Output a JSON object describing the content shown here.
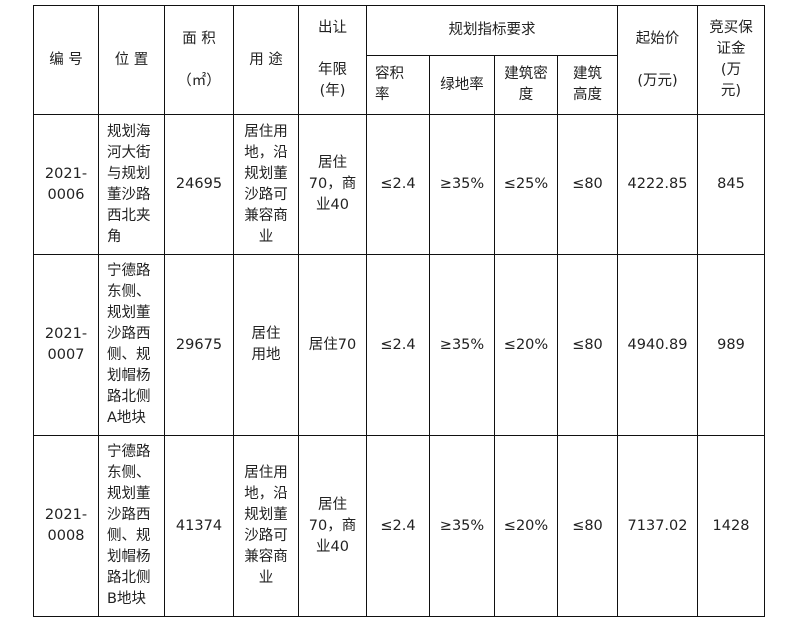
{
  "header": {
    "id": "编 号",
    "location": "位 置",
    "area": "面 积\n\n（㎡）",
    "use": "用 途",
    "term": "出让\n\n年限\n(年)",
    "planning": "规划指标要求",
    "far": "容积\n率",
    "green": "绿地率",
    "density": "建筑密\n度",
    "height": "建筑\n高度",
    "price": "起始价\n\n(万元)",
    "deposit": "竞买保\n证金\n(万\n元)"
  },
  "rows": [
    {
      "id": "2021-\n0006",
      "location": "规划海\n河大街\n与规划\n董沙路\n西北夹\n角",
      "area": "24695",
      "use": "居住用\n地，沿\n规划董\n沙路可\n兼容商\n业",
      "term": "居住\n70，商\n业40",
      "far": "≤2.4",
      "green": "≥35%",
      "density": "≤25%",
      "height": "≤80",
      "price": "4222.85",
      "deposit": "845"
    },
    {
      "id": "2021-\n0007",
      "location": "宁德路\n东侧、\n规划董\n沙路西\n侧、规\n划帽杨\n路北侧\nA地块",
      "area": "29675",
      "use": "居住\n用地",
      "term": "居住70",
      "far": "≤2.4",
      "green": "≥35%",
      "density": "≤20%",
      "height": "≤80",
      "price": "4940.89",
      "deposit": "989"
    },
    {
      "id": "2021-\n0008",
      "location": "宁德路\n东侧、\n规划董\n沙路西\n侧、规\n划帽杨\n路北侧\nB地块",
      "area": "41374",
      "use": "居住用\n地，沿\n规划董\n沙路可\n兼容商\n业",
      "term": "居住\n70，商\n业40",
      "far": "≤2.4",
      "green": "≥35%",
      "density": "≤20%",
      "height": "≤80",
      "price": "7137.02",
      "deposit": "1428"
    }
  ]
}
